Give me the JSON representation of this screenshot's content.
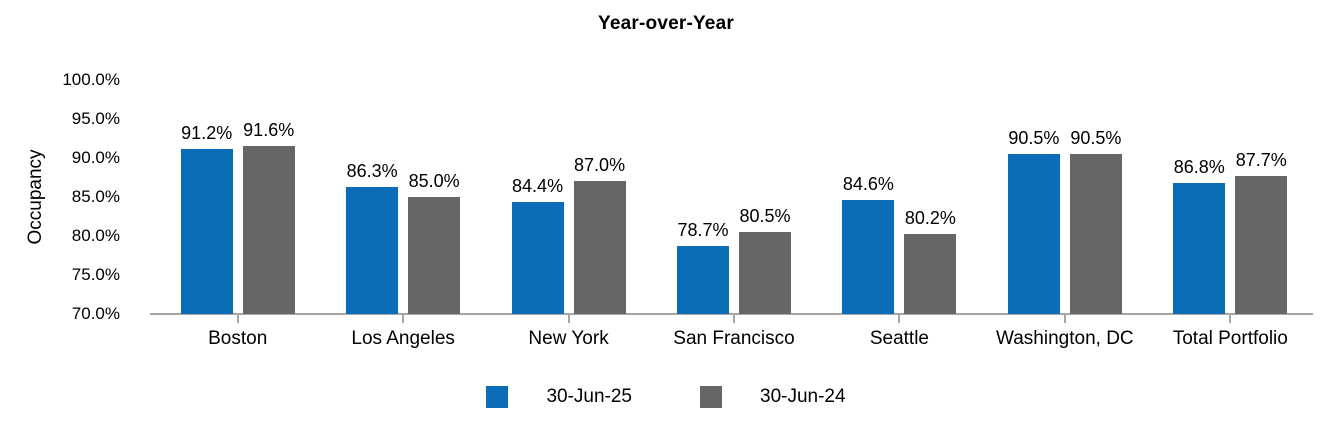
{
  "chart_data": {
    "type": "bar",
    "title": "Year-over-Year",
    "xlabel": "",
    "ylabel": "Occupancy",
    "ylim": [
      70,
      100
    ],
    "ytick_labels": [
      "100.0%",
      "95.0%",
      "90.0%",
      "85.0%",
      "80.0%",
      "75.0%",
      "70.0%"
    ],
    "categories": [
      "Boston",
      "Los Angeles",
      "New York",
      "San Francisco",
      "Seattle",
      "Washington, DC",
      "Total Portfolio"
    ],
    "series": [
      {
        "name": "30-Jun-25",
        "color": "#0B6DB7",
        "values": [
          91.2,
          86.3,
          84.4,
          78.7,
          84.6,
          90.5,
          86.8
        ],
        "labels": [
          "91.2%",
          "86.3%",
          "84.4%",
          "78.7%",
          "84.6%",
          "90.5%",
          "86.8%"
        ]
      },
      {
        "name": "30-Jun-24",
        "color": "#666666",
        "values": [
          91.6,
          85.0,
          87.0,
          80.5,
          80.2,
          90.5,
          87.7
        ],
        "labels": [
          "91.6%",
          "85.0%",
          "87.0%",
          "80.5%",
          "80.2%",
          "90.5%",
          "87.7%"
        ]
      }
    ],
    "grid": false,
    "legend_position": "bottom",
    "axis_color": "#A6A6A6",
    "text_color": "#000000"
  }
}
